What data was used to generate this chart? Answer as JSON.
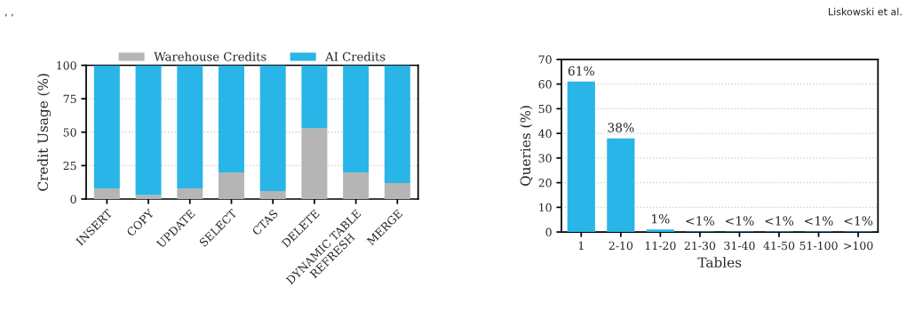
{
  "chart_data": [
    {
      "type": "bar",
      "stacked": true,
      "ylabel": "Credit Usage (%)",
      "categories": [
        "INSERT",
        "COPY",
        "UPDATE",
        "SELECT",
        "CTAS",
        "DELETE",
        "DYNAMIC TABLE\nREFRESH",
        "MERGE"
      ],
      "series": [
        {
          "name": "Warehouse Credits",
          "color": "#b5b5b5",
          "values": [
            8,
            3,
            8,
            20,
            6,
            53,
            20,
            12
          ]
        },
        {
          "name": "AI Credits",
          "color": "#29b5e8",
          "values": [
            92,
            97,
            92,
            80,
            94,
            47,
            80,
            88
          ]
        }
      ],
      "ylim": [
        0,
        100
      ],
      "yticks": [
        0,
        25,
        50,
        75,
        100
      ],
      "grid": "y",
      "legend": "top",
      "annotations": [
        ", ,"
      ]
    },
    {
      "type": "bar",
      "xlabel": "Tables",
      "ylabel": "Queries (%)",
      "categories": [
        "1",
        "2-10",
        "11-20",
        "21-30",
        "31-40",
        "41-50",
        "51-100",
        ">100"
      ],
      "values": [
        61,
        38,
        1,
        0.2,
        0.2,
        0.2,
        0.2,
        0.2
      ],
      "color": "#29b5e8",
      "value_labels": [
        "61%",
        "38%",
        "1%",
        "<1%",
        "<1%",
        "<1%",
        "<1%",
        "<1%"
      ],
      "ylim": [
        0,
        70
      ],
      "yticks": [
        0,
        10,
        20,
        30,
        40,
        50,
        60,
        70
      ],
      "grid": "y",
      "annotations": [
        "Liskowski et al."
      ]
    }
  ]
}
